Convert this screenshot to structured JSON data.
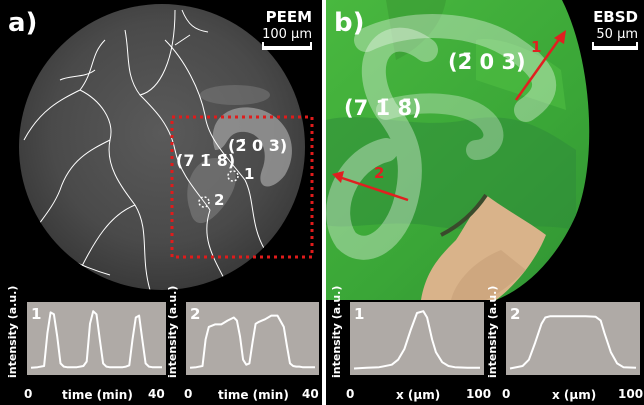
{
  "panel_a": {
    "letter": "a)",
    "technique": "PEEM",
    "scale_bar": "100 µm",
    "facet_1": "(7 1̄ 8̄)",
    "facet_2": "(2̄ 0 3)",
    "point_1": "1",
    "point_2": "2"
  },
  "panel_b": {
    "letter": "b)",
    "technique": "EBSD",
    "scale_bar": "50 µm",
    "facet_1": "(7 1̄ 8̄)",
    "facet_2": "(2̄ 0 3)",
    "arrow_1": "1",
    "arrow_2": "2"
  },
  "colors": {
    "background": "#000000",
    "plot_bg": "#afaaa6",
    "grain_green": "#3fae3c",
    "arrow_red": "#e02020",
    "roi_box": "#e01b1b"
  },
  "chart_data": [
    {
      "type": "line",
      "label": "1",
      "xlabel": "time (min)",
      "ylabel": "intensity (a.u.)",
      "xlim": [
        0,
        40
      ],
      "x_ticks": [
        "0",
        "40"
      ],
      "x": [
        0,
        2,
        4,
        5,
        6,
        7,
        8,
        9,
        10,
        11,
        12,
        13,
        14,
        15,
        16,
        17,
        18,
        19,
        20,
        21,
        22,
        23,
        24,
        25,
        26,
        27,
        28,
        29,
        30,
        31,
        32,
        33,
        34,
        35,
        36,
        37,
        38,
        40
      ],
      "y": [
        0.05,
        0.06,
        0.08,
        0.6,
        0.93,
        0.9,
        0.55,
        0.12,
        0.07,
        0.06,
        0.06,
        0.06,
        0.06,
        0.07,
        0.08,
        0.15,
        0.75,
        0.95,
        0.9,
        0.5,
        0.12,
        0.07,
        0.06,
        0.06,
        0.06,
        0.06,
        0.06,
        0.07,
        0.09,
        0.5,
        0.85,
        0.88,
        0.5,
        0.12,
        0.07,
        0.06,
        0.06,
        0.06
      ]
    },
    {
      "type": "line",
      "label": "2",
      "xlabel": "time (min)",
      "ylabel": "intensity (a.u.)",
      "xlim": [
        0,
        40
      ],
      "x_ticks": [
        "0",
        "40"
      ],
      "x": [
        0,
        2,
        4,
        5,
        6,
        8,
        10,
        12,
        14,
        15,
        16,
        17,
        18,
        19,
        20,
        21,
        22,
        23,
        24,
        26,
        28,
        30,
        31,
        32,
        33,
        34,
        35,
        36,
        37,
        38,
        40
      ],
      "y": [
        0.05,
        0.06,
        0.08,
        0.5,
        0.7,
        0.74,
        0.74,
        0.8,
        0.85,
        0.8,
        0.55,
        0.18,
        0.1,
        0.12,
        0.45,
        0.75,
        0.78,
        0.8,
        0.82,
        0.88,
        0.88,
        0.7,
        0.4,
        0.12,
        0.08,
        0.07,
        0.07,
        0.06,
        0.06,
        0.06,
        0.06
      ]
    },
    {
      "type": "line",
      "label": "1",
      "xlabel": "x (µm)",
      "ylabel": "intensity (a.u.)",
      "xlim": [
        0,
        100
      ],
      "x_ticks": [
        "0",
        "100"
      ],
      "x": [
        0,
        10,
        20,
        30,
        35,
        40,
        45,
        50,
        55,
        58,
        62,
        65,
        70,
        75,
        80,
        90,
        100
      ],
      "y": [
        0.04,
        0.05,
        0.06,
        0.1,
        0.18,
        0.35,
        0.65,
        0.92,
        0.95,
        0.85,
        0.5,
        0.3,
        0.14,
        0.08,
        0.06,
        0.05,
        0.05
      ]
    },
    {
      "type": "line",
      "label": "2",
      "xlabel": "x (µm)",
      "ylabel": "intensity (a.u.)",
      "xlim": [
        0,
        100
      ],
      "x_ticks": [
        "0",
        "100"
      ],
      "x": [
        0,
        10,
        15,
        20,
        25,
        28,
        32,
        40,
        50,
        60,
        68,
        72,
        75,
        80,
        85,
        90,
        100
      ],
      "y": [
        0.04,
        0.08,
        0.18,
        0.45,
        0.75,
        0.85,
        0.87,
        0.87,
        0.87,
        0.87,
        0.86,
        0.8,
        0.6,
        0.3,
        0.12,
        0.06,
        0.05
      ]
    }
  ]
}
